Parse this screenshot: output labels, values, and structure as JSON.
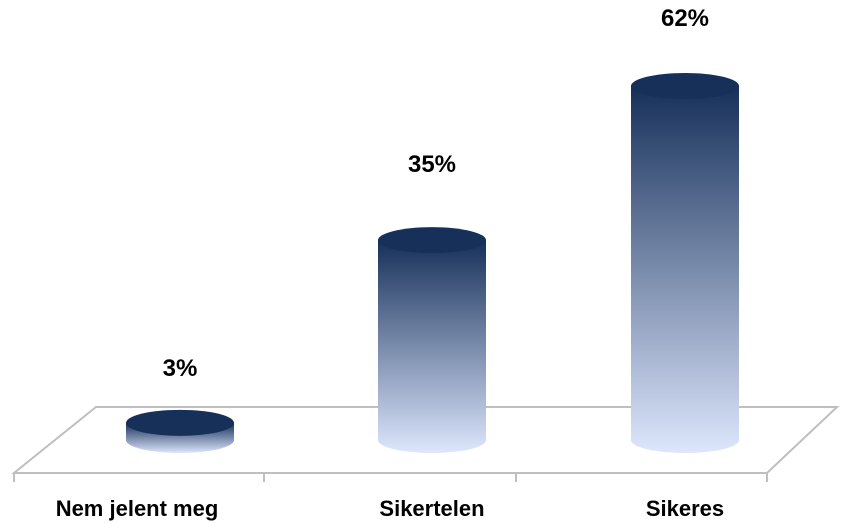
{
  "chart_data": {
    "type": "bar",
    "style": "3d-cylinder",
    "categories": [
      "Nem jelent meg",
      "Sikertelen",
      "Sikeres"
    ],
    "values": [
      3,
      35,
      62
    ],
    "data_labels": [
      "3%",
      "35%",
      "62%"
    ],
    "ylim": [
      0,
      62
    ],
    "grid": false,
    "legend": "none",
    "colors": {
      "top": "#16305a",
      "bottom": "#dde6fc",
      "floor": "#bfbfbf"
    }
  }
}
